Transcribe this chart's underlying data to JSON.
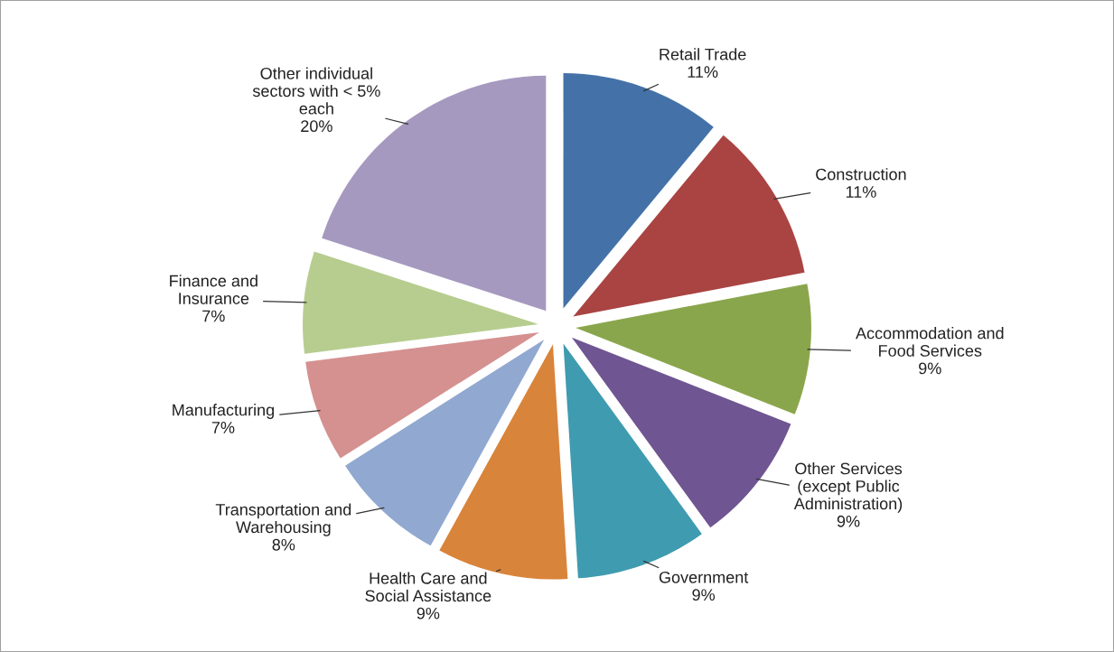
{
  "chart_data": {
    "type": "pie",
    "categories": [
      "Retail Trade",
      "Construction",
      "Accommodation and\nFood Services",
      "Other Services\n(except Public\nAdministration)",
      "Government",
      "Health Care and\nSocial Assistance",
      "Transportation and\nWarehousing",
      "Manufacturing",
      "Finance and\nInsurance",
      "Other individual\nsectors with < 5%\neach"
    ],
    "values": [
      11,
      11,
      9,
      9,
      9,
      9,
      8,
      7,
      7,
      20
    ],
    "value_labels": [
      "11%",
      "11%",
      "9%",
      "9%",
      "9%",
      "9%",
      "8%",
      "7%",
      "7%",
      "20%"
    ],
    "colors": [
      "#4472a8",
      "#a94442",
      "#8aa64c",
      "#6f5591",
      "#3f9bb0",
      "#d9843b",
      "#91a8d0",
      "#d49190",
      "#b7cd8f",
      "#a699bf"
    ],
    "legend": false
  }
}
